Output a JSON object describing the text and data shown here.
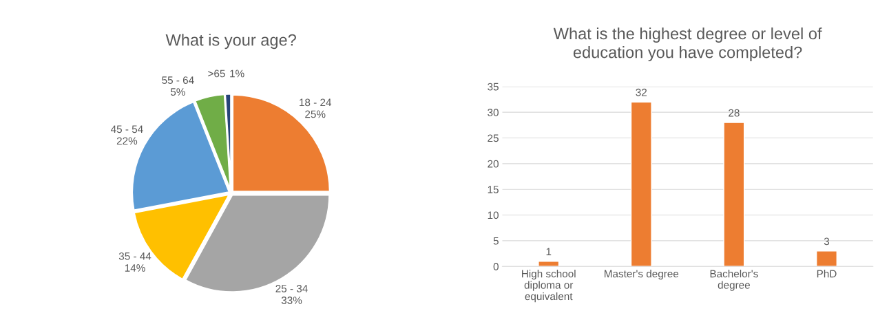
{
  "chart_data": [
    {
      "type": "pie",
      "title": "What is your age?",
      "categories": [
        "18 - 24",
        "25 - 34",
        "35 - 44",
        "45 - 54",
        "55 - 64",
        ">65"
      ],
      "values": [
        25,
        33,
        14,
        22,
        5,
        1
      ],
      "colors": [
        "#ed7d31",
        "#a5a5a5",
        "#ffc000",
        "#5b9bd5",
        "#70ad47",
        "#264478"
      ],
      "value_labels": [
        "25%",
        "33%",
        "14%",
        "22%",
        "5%",
        "1%"
      ]
    },
    {
      "type": "bar",
      "title": "What is the highest degree or level of\neducation you have completed?",
      "categories": [
        "High school\ndiploma or\nequivalent",
        "Master's degree",
        "Bachelor's\ndegree",
        "PhD"
      ],
      "values": [
        1,
        32,
        28,
        3
      ],
      "color": "#ed7d31",
      "ylim": [
        0,
        35
      ],
      "yticks": [
        0,
        5,
        10,
        15,
        20,
        25,
        30,
        35
      ],
      "grid": "y",
      "data_labels": true
    }
  ]
}
